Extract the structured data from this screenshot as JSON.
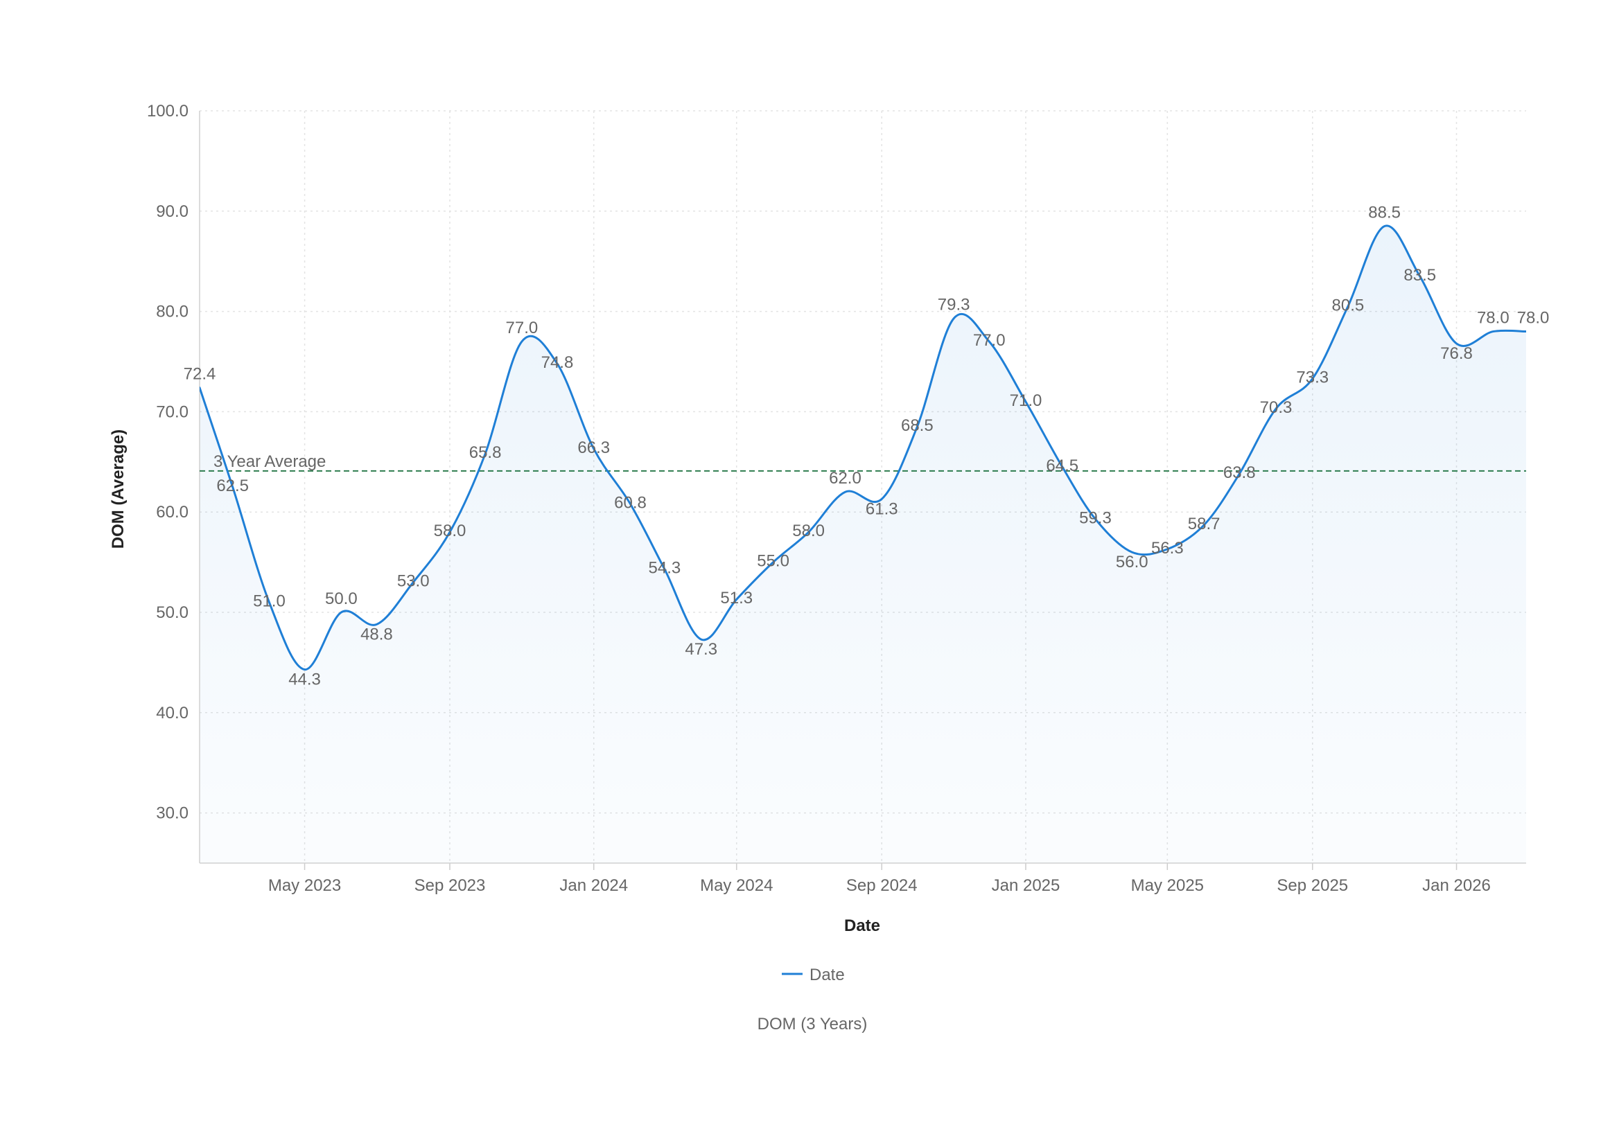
{
  "chart_data": {
    "type": "line",
    "smooth": true,
    "area_fill": true,
    "xlabel": "Date",
    "ylabel": "DOM (Average)",
    "ylim": [
      25,
      100
    ],
    "yticks": [
      30,
      40,
      50,
      60,
      70,
      80,
      90,
      100
    ],
    "ytick_labels": [
      "30.0",
      "40.0",
      "50.0",
      "60.0",
      "70.0",
      "80.0",
      "90.0",
      "100.0"
    ],
    "xlim": [
      "2023-02-01",
      "2026-03-01"
    ],
    "xticks": [
      {
        "date": "2023-05-01",
        "label": "May 2023"
      },
      {
        "date": "2023-09-01",
        "label": "Sep 2023"
      },
      {
        "date": "2024-01-01",
        "label": "Jan 2024"
      },
      {
        "date": "2024-05-01",
        "label": "May 2024"
      },
      {
        "date": "2024-09-01",
        "label": "Sep 2024"
      },
      {
        "date": "2025-01-01",
        "label": "Jan 2025"
      },
      {
        "date": "2025-05-01",
        "label": "May 2025"
      },
      {
        "date": "2025-09-01",
        "label": "Sep 2025"
      },
      {
        "date": "2026-01-01",
        "label": "Jan 2026"
      }
    ],
    "grid": true,
    "series": [
      {
        "name": "Date",
        "color": "#1f7fd6",
        "x": [
          "2023-02-01",
          "2023-03-01",
          "2023-04-01",
          "2023-05-01",
          "2023-06-01",
          "2023-07-01",
          "2023-08-01",
          "2023-09-01",
          "2023-10-01",
          "2023-11-01",
          "2023-12-01",
          "2024-01-01",
          "2024-02-01",
          "2024-03-01",
          "2024-04-01",
          "2024-05-01",
          "2024-06-01",
          "2024-07-01",
          "2024-08-01",
          "2024-09-01",
          "2024-10-01",
          "2024-11-01",
          "2024-12-01",
          "2025-01-01",
          "2025-02-01",
          "2025-03-01",
          "2025-04-01",
          "2025-05-01",
          "2025-06-01",
          "2025-07-01",
          "2025-08-01",
          "2025-09-01",
          "2025-10-01",
          "2025-11-01",
          "2025-12-01",
          "2026-01-01",
          "2026-02-01",
          "2026-03-01"
        ],
        "values": [
          72.4,
          62.5,
          51.0,
          44.3,
          50.0,
          48.8,
          53.0,
          58.0,
          65.8,
          77.0,
          74.8,
          66.3,
          60.8,
          54.3,
          47.3,
          51.3,
          55.0,
          58.0,
          62.0,
          61.3,
          68.5,
          79.3,
          77.0,
          71.0,
          64.5,
          59.3,
          56.0,
          56.3,
          58.7,
          63.8,
          70.3,
          73.3,
          80.5,
          88.5,
          83.5,
          76.8,
          78.0,
          78.0
        ],
        "labels": [
          "72.4",
          "62.5",
          "51.0",
          "44.3",
          "50.0",
          "48.8",
          "53.0",
          "58.0",
          "65.8",
          "77.0",
          "74.8",
          "66.3",
          "60.8",
          "54.3",
          "47.3",
          "51.3",
          "55.0",
          "58.0",
          "62.0",
          "61.3",
          "68.5",
          "79.3",
          "77.0",
          "71.0",
          "64.5",
          "59.3",
          "56.0",
          "56.3",
          "58.7",
          "63.8",
          "70.3",
          "73.3",
          "80.5",
          "88.5",
          "83.5",
          "76.8",
          "78.0",
          "78.0"
        ]
      }
    ],
    "reference_line": {
      "label": "3 Year Average",
      "value": 64.1,
      "color": "#2e7d4f"
    },
    "legend": {
      "position": "bottom",
      "entries": [
        "Date"
      ]
    },
    "caption": "DOM (3 Years)"
  }
}
